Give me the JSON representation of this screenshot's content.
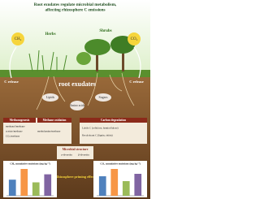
{
  "title": [
    "Root exudates regulate microbial metabolism,",
    "affecting rhizosphere C emissions"
  ],
  "plants": {
    "herbs": "Herbs",
    "shrubs": "Shrubs"
  },
  "gases": {
    "left": "CH₄",
    "right": "CO₂"
  },
  "c_release": {
    "left": "C release",
    "right": "C release"
  },
  "exudates": {
    "label": "root exudates",
    "items": [
      "Lipids",
      "Amino acids",
      "Sugars"
    ]
  },
  "left_box": {
    "headers": [
      "Methanogenesis",
      "Methane oxidation"
    ],
    "items": [
      "methanol/methane",
      "acetate/methane",
      "methylamine/methane",
      "CO₂/methane"
    ]
  },
  "right_box": {
    "header": "Carbon degradation",
    "items": [
      "Labile C (cellulose, hemicellulose)",
      "Recalcitrant C (lignin, chitin)"
    ]
  },
  "microbial": {
    "title": "Microbial structure",
    "items": [
      "α-diversity",
      "β-diversity"
    ]
  },
  "charts": [
    {
      "title": "CH₄ cumulative emissions (mg kg⁻¹)",
      "values": [
        3,
        5,
        2.5,
        4
      ],
      "colors": [
        "#4f81bd",
        "#f79646",
        "#9bbb59",
        "#8064a2"
      ]
    },
    {
      "title": "CO₂ cumulative emissions (mg kg⁻¹)",
      "values": [
        4,
        5.5,
        3,
        4.5
      ],
      "colors": [
        "#4f81bd",
        "#f79646",
        "#9bbb59",
        "#8064a2"
      ]
    }
  ],
  "priming": "Rhizosphere priming effect"
}
